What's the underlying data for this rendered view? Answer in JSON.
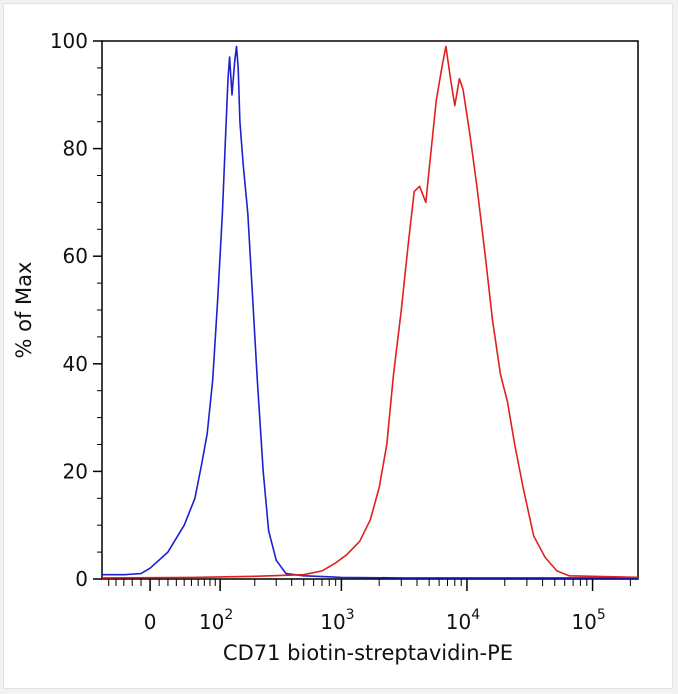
{
  "chart_data": {
    "type": "line",
    "title": "",
    "xlabel": "CD71 biotin-streptavidin-PE",
    "ylabel": "% of Max",
    "x_scale": "biexponential",
    "x_range": [
      -60,
      230000
    ],
    "ylim": [
      0,
      100
    ],
    "x_ticks": [
      {
        "value": 0,
        "base": "0",
        "exp": ""
      },
      {
        "value": 100,
        "base": "10",
        "exp": "2"
      },
      {
        "value": 1000,
        "base": "10",
        "exp": "3"
      },
      {
        "value": 10000,
        "base": "10",
        "exp": "4"
      },
      {
        "value": 100000,
        "base": "10",
        "exp": "5"
      }
    ],
    "y_ticks": [
      {
        "value": 0,
        "label": "0"
      },
      {
        "value": 20,
        "label": "20"
      },
      {
        "value": 40,
        "label": "40"
      },
      {
        "value": 60,
        "label": "60"
      },
      {
        "value": 80,
        "label": "80"
      },
      {
        "value": 100,
        "label": "100"
      }
    ],
    "legend": "none",
    "grid": false,
    "series": [
      {
        "color": "#1f1fd0",
        "points": [
          [
            -60,
            0.8
          ],
          [
            -30,
            0.8
          ],
          [
            -10,
            1
          ],
          [
            0,
            2
          ],
          [
            20,
            5
          ],
          [
            40,
            10
          ],
          [
            55,
            15
          ],
          [
            65,
            21
          ],
          [
            75,
            27
          ],
          [
            85,
            37
          ],
          [
            95,
            52
          ],
          [
            105,
            68
          ],
          [
            112,
            82
          ],
          [
            118,
            93
          ],
          [
            122,
            97
          ],
          [
            128,
            90
          ],
          [
            135,
            96
          ],
          [
            140,
            99
          ],
          [
            145,
            95
          ],
          [
            150,
            85
          ],
          [
            160,
            77
          ],
          [
            175,
            68
          ],
          [
            190,
            54
          ],
          [
            210,
            37
          ],
          [
            235,
            20
          ],
          [
            260,
            9
          ],
          [
            300,
            3.5
          ],
          [
            360,
            1
          ],
          [
            500,
            0.6
          ],
          [
            800,
            0.4
          ],
          [
            1000,
            0.3
          ],
          [
            3000,
            0.2
          ],
          [
            100000,
            0.2
          ],
          [
            230000,
            0.2
          ]
        ]
      },
      {
        "color": "#e02020",
        "points": [
          [
            -60,
            0.2
          ],
          [
            50,
            0.3
          ],
          [
            200,
            0.5
          ],
          [
            500,
            0.8
          ],
          [
            700,
            1.5
          ],
          [
            900,
            3
          ],
          [
            1100,
            4.5
          ],
          [
            1400,
            7
          ],
          [
            1700,
            11
          ],
          [
            2000,
            17
          ],
          [
            2300,
            25
          ],
          [
            2600,
            38
          ],
          [
            3000,
            50
          ],
          [
            3400,
            62
          ],
          [
            3800,
            72
          ],
          [
            4200,
            73
          ],
          [
            4700,
            70
          ],
          [
            5200,
            80
          ],
          [
            5700,
            89
          ],
          [
            6300,
            95
          ],
          [
            6800,
            99
          ],
          [
            7400,
            93
          ],
          [
            8000,
            88
          ],
          [
            8700,
            93
          ],
          [
            9300,
            91
          ],
          [
            10500,
            83
          ],
          [
            12000,
            73
          ],
          [
            14000,
            60
          ],
          [
            16000,
            48
          ],
          [
            18500,
            38
          ],
          [
            21000,
            33
          ],
          [
            24000,
            25
          ],
          [
            28000,
            17
          ],
          [
            34000,
            8
          ],
          [
            42000,
            4
          ],
          [
            52000,
            1.5
          ],
          [
            65000,
            0.6
          ],
          [
            100000,
            0.5
          ],
          [
            150000,
            0.4
          ],
          [
            230000,
            0.3
          ]
        ]
      }
    ]
  }
}
